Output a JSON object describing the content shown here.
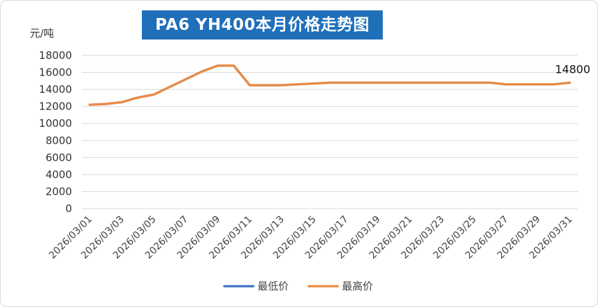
{
  "chart_data": {
    "type": "line",
    "title": "PA6 YH400本月价格走势图",
    "ylabel": "元/吨",
    "ylim": [
      0,
      18000
    ],
    "yticks": [
      0,
      2000,
      4000,
      6000,
      8000,
      10000,
      12000,
      14000,
      16000,
      18000
    ],
    "grid": true,
    "legend_position": "bottom",
    "x": [
      "2026/03/01",
      "2026/03/02",
      "2026/03/03",
      "2026/03/04",
      "2026/03/05",
      "2026/03/06",
      "2026/03/07",
      "2026/03/08",
      "2026/03/09",
      "2026/03/10",
      "2026/03/11",
      "2026/03/12",
      "2026/03/13",
      "2026/03/14",
      "2026/03/15",
      "2026/03/16",
      "2026/03/17",
      "2026/03/18",
      "2026/03/19",
      "2026/03/20",
      "2026/03/21",
      "2026/03/22",
      "2026/03/23",
      "2026/03/24",
      "2026/03/25",
      "2026/03/26",
      "2026/03/27",
      "2026/03/28",
      "2026/03/29",
      "2026/03/30",
      "2026/03/31"
    ],
    "x_tick_labels": [
      "2026/03/01",
      "2026/03/03",
      "2026/03/05",
      "2026/03/07",
      "2026/03/09",
      "2026/03/11",
      "2026/03/13",
      "2026/03/15",
      "2026/03/17",
      "2026/03/19",
      "2026/03/21",
      "2026/03/23",
      "2026/03/25",
      "2026/03/27",
      "2026/03/29",
      "2026/03/31"
    ],
    "series": [
      {
        "name": "最低价",
        "color": "#4472c4",
        "values": [
          12200,
          12300,
          12500,
          13050,
          13400,
          14300,
          15200,
          16100,
          16800,
          16800,
          14500,
          14500,
          14500,
          14600,
          14700,
          14800,
          14800,
          14800,
          14800,
          14800,
          14800,
          14800,
          14800,
          14800,
          14800,
          14800,
          14600,
          14600,
          14600,
          14600,
          14800
        ]
      },
      {
        "name": "最高价",
        "color": "#ed8a3f",
        "values": [
          12200,
          12300,
          12500,
          13050,
          13400,
          14300,
          15200,
          16100,
          16800,
          16800,
          14500,
          14500,
          14500,
          14600,
          14700,
          14800,
          14800,
          14800,
          14800,
          14800,
          14800,
          14800,
          14800,
          14800,
          14800,
          14800,
          14600,
          14600,
          14600,
          14600,
          14800
        ]
      }
    ],
    "annotations": [
      {
        "series": "最高价",
        "index": 30,
        "text": "14800"
      }
    ]
  }
}
